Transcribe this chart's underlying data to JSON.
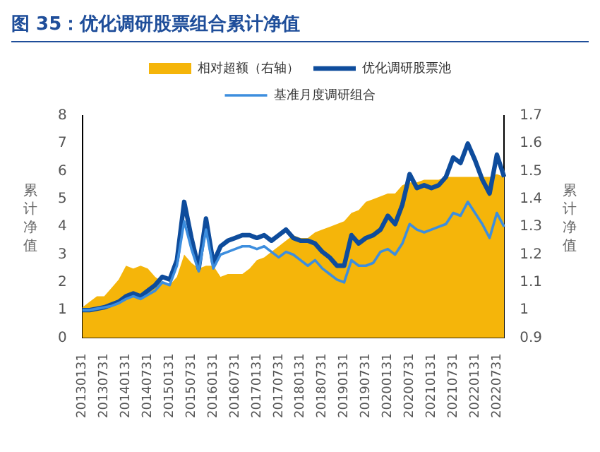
{
  "chart_data": {
    "type": "line",
    "title": "图 35：优化调研股票组合累计净值",
    "ylabel": "累计净值",
    "y2label": "累计净值",
    "categories": [
      "20130131",
      null,
      null,
      "20130731",
      null,
      null,
      "20140131",
      null,
      null,
      "20140731",
      null,
      null,
      "20150131",
      null,
      null,
      "20150731",
      null,
      null,
      "20160131",
      null,
      null,
      "20160731",
      null,
      null,
      "20170131",
      null,
      null,
      "20170731",
      null,
      null,
      "20180131",
      null,
      null,
      "20180731",
      null,
      null,
      "20190131",
      null,
      null,
      "20190731",
      null,
      null,
      "20200131",
      null,
      null,
      "20200731",
      null,
      null,
      "20210131",
      null,
      null,
      "20210731",
      null,
      null,
      "20220131",
      null,
      null,
      "20220731",
      null
    ],
    "series": [
      {
        "name": "相对超额（右轴）",
        "type": "area",
        "axis": "y2",
        "color": "#f5b50a",
        "values": [
          1.01,
          1.03,
          1.05,
          1.05,
          1.08,
          1.11,
          1.16,
          1.15,
          1.16,
          1.15,
          1.12,
          1.1,
          1.09,
          1.12,
          1.2,
          1.17,
          1.15,
          1.16,
          1.16,
          1.12,
          1.13,
          1.13,
          1.13,
          1.15,
          1.18,
          1.19,
          1.21,
          1.23,
          1.25,
          1.27,
          1.26,
          1.26,
          1.28,
          1.29,
          1.3,
          1.31,
          1.32,
          1.35,
          1.36,
          1.39,
          1.4,
          1.41,
          1.42,
          1.42,
          1.45,
          1.46,
          1.46,
          1.47,
          1.47,
          1.47,
          1.48,
          1.48,
          1.48,
          1.48,
          1.48,
          1.48,
          1.48,
          1.49,
          1.48
        ]
      },
      {
        "name": "优化调研股票池",
        "color": "#0e4c9c",
        "values": [
          1.0,
          1.0,
          1.05,
          1.1,
          1.2,
          1.3,
          1.5,
          1.6,
          1.5,
          1.7,
          1.9,
          2.2,
          2.1,
          2.8,
          4.9,
          3.6,
          2.5,
          4.3,
          2.7,
          3.3,
          3.5,
          3.6,
          3.7,
          3.7,
          3.6,
          3.7,
          3.5,
          3.7,
          3.9,
          3.6,
          3.5,
          3.5,
          3.4,
          3.1,
          2.9,
          2.6,
          2.6,
          3.7,
          3.4,
          3.6,
          3.7,
          3.9,
          4.4,
          4.1,
          4.8,
          5.9,
          5.4,
          5.5,
          5.4,
          5.5,
          5.8,
          6.5,
          6.3,
          7.0,
          6.4,
          5.7,
          5.2,
          6.6,
          5.8
        ]
      },
      {
        "name": "基准月度调研组合",
        "color": "#3d8ede",
        "values": [
          1.0,
          1.0,
          1.05,
          1.1,
          1.15,
          1.25,
          1.4,
          1.5,
          1.4,
          1.55,
          1.7,
          2.0,
          1.9,
          2.6,
          4.2,
          3.2,
          2.4,
          3.9,
          2.5,
          3.0,
          3.1,
          3.2,
          3.3,
          3.3,
          3.2,
          3.3,
          3.1,
          2.9,
          3.1,
          3.0,
          2.8,
          2.6,
          2.8,
          2.5,
          2.3,
          2.1,
          2.0,
          2.8,
          2.6,
          2.6,
          2.7,
          3.1,
          3.2,
          3.0,
          3.4,
          4.1,
          3.9,
          3.8,
          3.9,
          4.0,
          4.1,
          4.5,
          4.4,
          4.9,
          4.5,
          4.1,
          3.6,
          4.5,
          4.0
        ]
      }
    ],
    "ylim": [
      0,
      8
    ],
    "yticks": [
      0,
      1,
      2,
      3,
      4,
      5,
      6,
      7,
      8
    ],
    "y2lim": [
      0.9,
      1.7
    ],
    "y2ticks": [
      0.9,
      1,
      1.1,
      1.2,
      1.3,
      1.4,
      1.5,
      1.6,
      1.7
    ],
    "grid": false,
    "legend": "top"
  }
}
